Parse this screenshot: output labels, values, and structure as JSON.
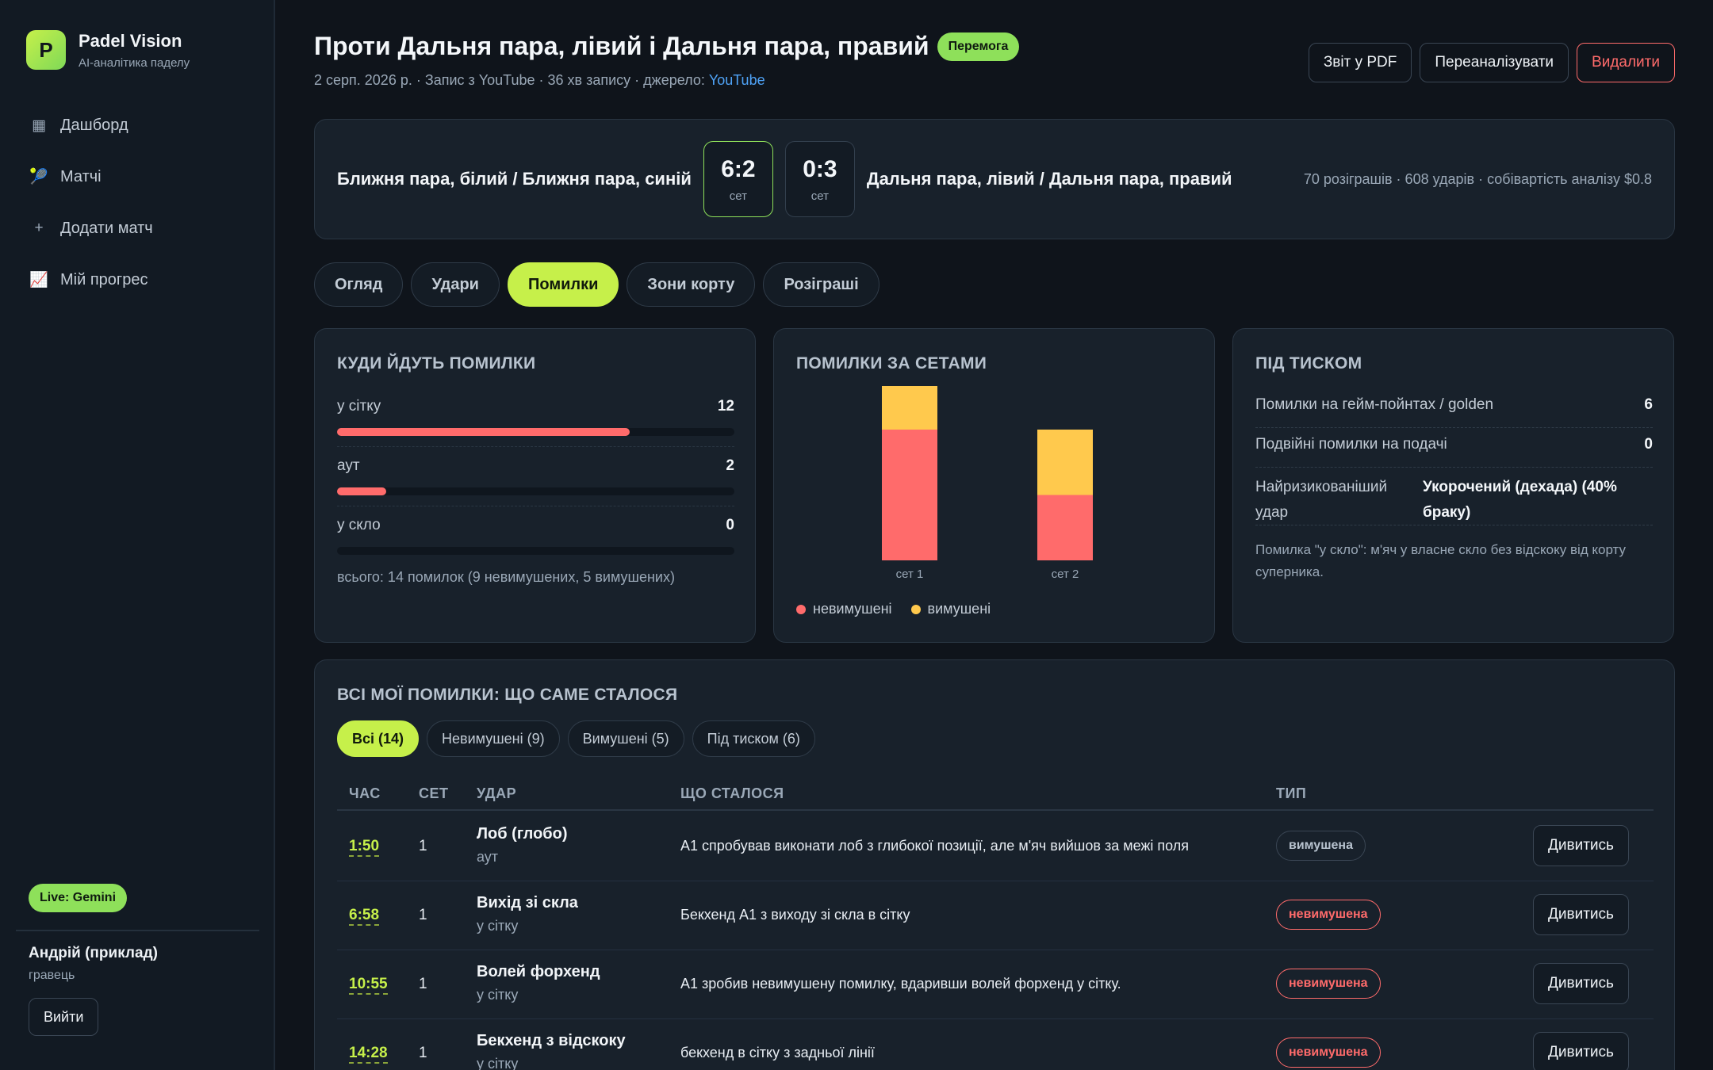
{
  "brand": {
    "logo_letter": "P",
    "name": "Padel Vision",
    "subtitle": "AI-аналітика падел­у"
  },
  "nav": [
    {
      "icon": "dashboard-icon",
      "glyph": "▦",
      "label": "Дашборд"
    },
    {
      "icon": "tennis-racket-icon",
      "glyph": "🎾",
      "label": "Матчі"
    },
    {
      "icon": "plus-icon",
      "glyph": "+",
      "label": "Додати матч"
    },
    {
      "icon": "chart-trend-icon",
      "glyph": "📈",
      "label": "Мій прогрес"
    }
  ],
  "live_badge": "Live: Gemini",
  "user": {
    "name": "Андрій (приклад)",
    "role": "гравець",
    "logout_label": "Вийти"
  },
  "header": {
    "title": "Проти Дальня пара, лівий і Дальня пара, правий",
    "result_badge": "Перемога",
    "meta": "2 серп. 2026 р. · Запис з YouTube · 36 хв запису · джерело: ",
    "source_link": "YouTube",
    "actions": {
      "pdf": "Звіт у PDF",
      "reanalyze": "Переаналізувати",
      "delete": "Видалити"
    }
  },
  "score": {
    "team_left": "Ближня пара, білий / Ближня пара, синій",
    "sets": [
      {
        "score": "6:2",
        "label": "сет",
        "won": true
      },
      {
        "score": "0:3",
        "label": "сет",
        "won": false
      }
    ],
    "team_right": "Дальня пара, лівий / Дальня пара, правий",
    "stats": "70 розіграшів · 608 ударів · собівартість аналізу $0.8"
  },
  "tabs": [
    "Огляд",
    "Удари",
    "Помилки",
    "Зони корту",
    "Розіграші"
  ],
  "active_tab": "Помилки",
  "errors_where": {
    "title": "КУДИ ЙДУТЬ ПОМИЛКИ",
    "rows": [
      {
        "label": "у сітку",
        "count": "12",
        "value": 12
      },
      {
        "label": "аут",
        "count": "2",
        "value": 2
      },
      {
        "label": "у скло",
        "count": "0",
        "value": 0
      }
    ],
    "max": 14,
    "total": "всього: 14 помилок (9 невимушених, 5 вимушених)"
  },
  "chart_data": {
    "type": "bar",
    "title": "ПОМИЛКИ ЗА СЕТАМИ",
    "stacked": true,
    "categories": [
      "сет 1",
      "сет 2"
    ],
    "series": [
      {
        "name": "невимушені",
        "color": "#ff6b6b",
        "values": [
          6,
          3
        ]
      },
      {
        "name": "вимушені",
        "color": "#ffc94d",
        "values": [
          2,
          3
        ]
      }
    ],
    "ylim": [
      0,
      8
    ],
    "legend": "bottom-left"
  },
  "pressure": {
    "title": "ПІД ТИСКОМ",
    "rows": [
      {
        "label": "Помилки на гейм-пойнтах / golden",
        "value": "6"
      },
      {
        "label": "Подвійні помилки на подачі",
        "value": "0"
      }
    ],
    "risky_label": "Найризикованіший удар",
    "risky_value": "Укорочений (дехада) (40% браку)",
    "note": "Помилка \"у скло\": м'яч у власне скло без відскоку від корту суперника."
  },
  "errors_table": {
    "title": "ВСІ МОЇ ПОМИЛКИ: ЩО САМЕ СТАЛОСЯ",
    "filters": [
      "Всі (14)",
      "Невимушені (9)",
      "Вимушені (5)",
      "Під тиском (6)"
    ],
    "columns": [
      "ЧАС",
      "СЕТ",
      "УДАР",
      "ЩО СТАЛОСЯ",
      "ТИП"
    ],
    "watch_label": "Дивитись",
    "rows": [
      {
        "time": "1:50",
        "set": "1",
        "shot": "Лоб (глобо)",
        "target": "аут",
        "what": "A1 спробував виконати лоб з глибокої позиції, але м'яч вийшов за межі поля",
        "type": "вимушена",
        "kind": "forced"
      },
      {
        "time": "6:58",
        "set": "1",
        "shot": "Вихід зі скла",
        "target": "у сітку",
        "what": "Бекхенд A1 з виходу зі скла в сітку",
        "type": "невимушена",
        "kind": "unforced"
      },
      {
        "time": "10:55",
        "set": "1",
        "shot": "Волей форхенд",
        "target": "у сітку",
        "what": "A1 зробив невимушену помилку, вдаривши волей форхенд у сітку.",
        "type": "невимушена",
        "kind": "unforced"
      },
      {
        "time": "14:28",
        "set": "1",
        "shot": "Бекхенд з відскоку",
        "target": "у сітку",
        "what": "бекхенд в сітку з задньої лінії",
        "type": "невимушена",
        "kind": "unforced"
      }
    ]
  }
}
